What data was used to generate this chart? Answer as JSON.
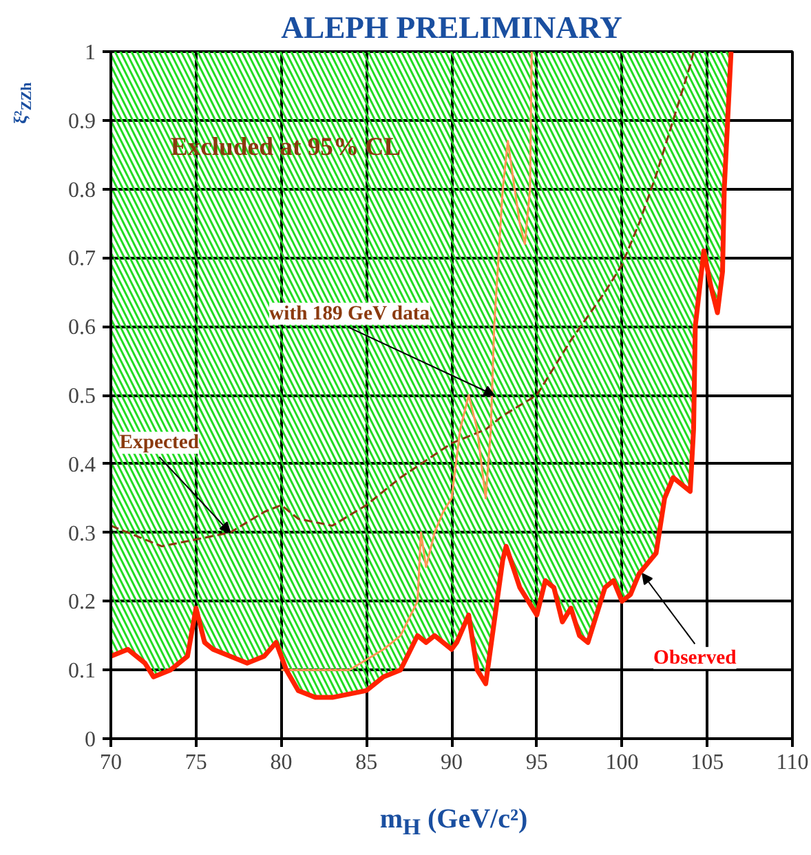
{
  "chart_data": {
    "type": "line",
    "title": "ALEPH PRELIMINARY",
    "xlabel": "m$_{H}$ (GeV/c²)",
    "ylabel": "ξ²$_{ZZh}$",
    "xlim": [
      70,
      110
    ],
    "xticks": [
      70,
      75,
      80,
      85,
      90,
      95,
      100,
      105,
      110
    ],
    "ylim": [
      0,
      1
    ],
    "yticks": [
      0,
      0.1,
      0.2,
      0.3,
      0.4,
      0.5,
      0.6,
      0.7,
      0.8,
      0.9,
      1
    ],
    "grid": true,
    "series": [
      {
        "color": "#8b3a0f",
        "line_style": "dashed",
        "x": [
          70,
          72,
          73,
          75,
          77,
          79,
          80,
          81,
          83,
          85,
          87,
          90,
          92,
          93,
          95,
          97,
          99,
          100,
          101,
          102,
          103,
          104,
          104.2
        ],
        "values": [
          0.31,
          0.29,
          0.28,
          0.29,
          0.3,
          0.33,
          0.34,
          0.32,
          0.31,
          0.34,
          0.38,
          0.43,
          0.45,
          0.47,
          0.5,
          0.58,
          0.65,
          0.69,
          0.75,
          0.82,
          0.9,
          0.98,
          1
        ]
      },
      {
        "color": "#ff9955",
        "line_style": "solid",
        "x": [
          80,
          82,
          84,
          86,
          87,
          88,
          88.2,
          88.5,
          89,
          89.5,
          90,
          90.5,
          91,
          91.5,
          92,
          92.3,
          92.5,
          93,
          93.3,
          93.7,
          94,
          94.3,
          94.6,
          94.7
        ],
        "values": [
          0.1,
          0.1,
          0.1,
          0.13,
          0.15,
          0.2,
          0.3,
          0.25,
          0.3,
          0.33,
          0.35,
          0.45,
          0.5,
          0.45,
          0.35,
          0.45,
          0.6,
          0.8,
          0.87,
          0.8,
          0.75,
          0.72,
          0.8,
          1
        ]
      },
      {
        "color": "#ff2200",
        "line_style": "solid",
        "x": [
          70,
          71,
          72,
          72.5,
          73.5,
          74.5,
          75,
          75.5,
          76,
          77,
          78,
          79,
          79.7,
          80.3,
          81,
          82,
          83,
          84,
          85,
          86,
          87,
          88,
          88.5,
          89,
          90,
          90.3,
          91,
          91.5,
          92,
          92.5,
          93,
          93.2,
          94,
          95,
          95.5,
          96,
          96.5,
          97,
          97.5,
          98,
          99,
          99.5,
          100,
          100.5,
          101,
          102,
          102.5,
          103,
          104,
          104.2,
          104.3,
          104.8,
          105.2,
          105.6,
          105.9,
          106,
          106.2,
          106.4
        ],
        "values": [
          0.12,
          0.13,
          0.11,
          0.09,
          0.1,
          0.12,
          0.19,
          0.14,
          0.13,
          0.12,
          0.11,
          0.12,
          0.14,
          0.1,
          0.07,
          0.06,
          0.06,
          0.065,
          0.07,
          0.09,
          0.1,
          0.15,
          0.14,
          0.15,
          0.13,
          0.14,
          0.18,
          0.1,
          0.08,
          0.17,
          0.26,
          0.28,
          0.22,
          0.18,
          0.23,
          0.22,
          0.17,
          0.19,
          0.15,
          0.14,
          0.22,
          0.23,
          0.2,
          0.21,
          0.24,
          0.27,
          0.35,
          0.38,
          0.36,
          0.45,
          0.6,
          0.71,
          0.66,
          0.62,
          0.68,
          0.8,
          0.9,
          1
        ]
      }
    ],
    "annotations": [
      "Excluded at 95% CL",
      {
        "text": "with 189 GeV data",
        "x": 92.5,
        "y": 0.5
      },
      {
        "text": "Expected",
        "x": 77,
        "y": 0.3
      },
      {
        "text": "Observed",
        "x": 101.2,
        "y": 0.24
      }
    ]
  }
}
